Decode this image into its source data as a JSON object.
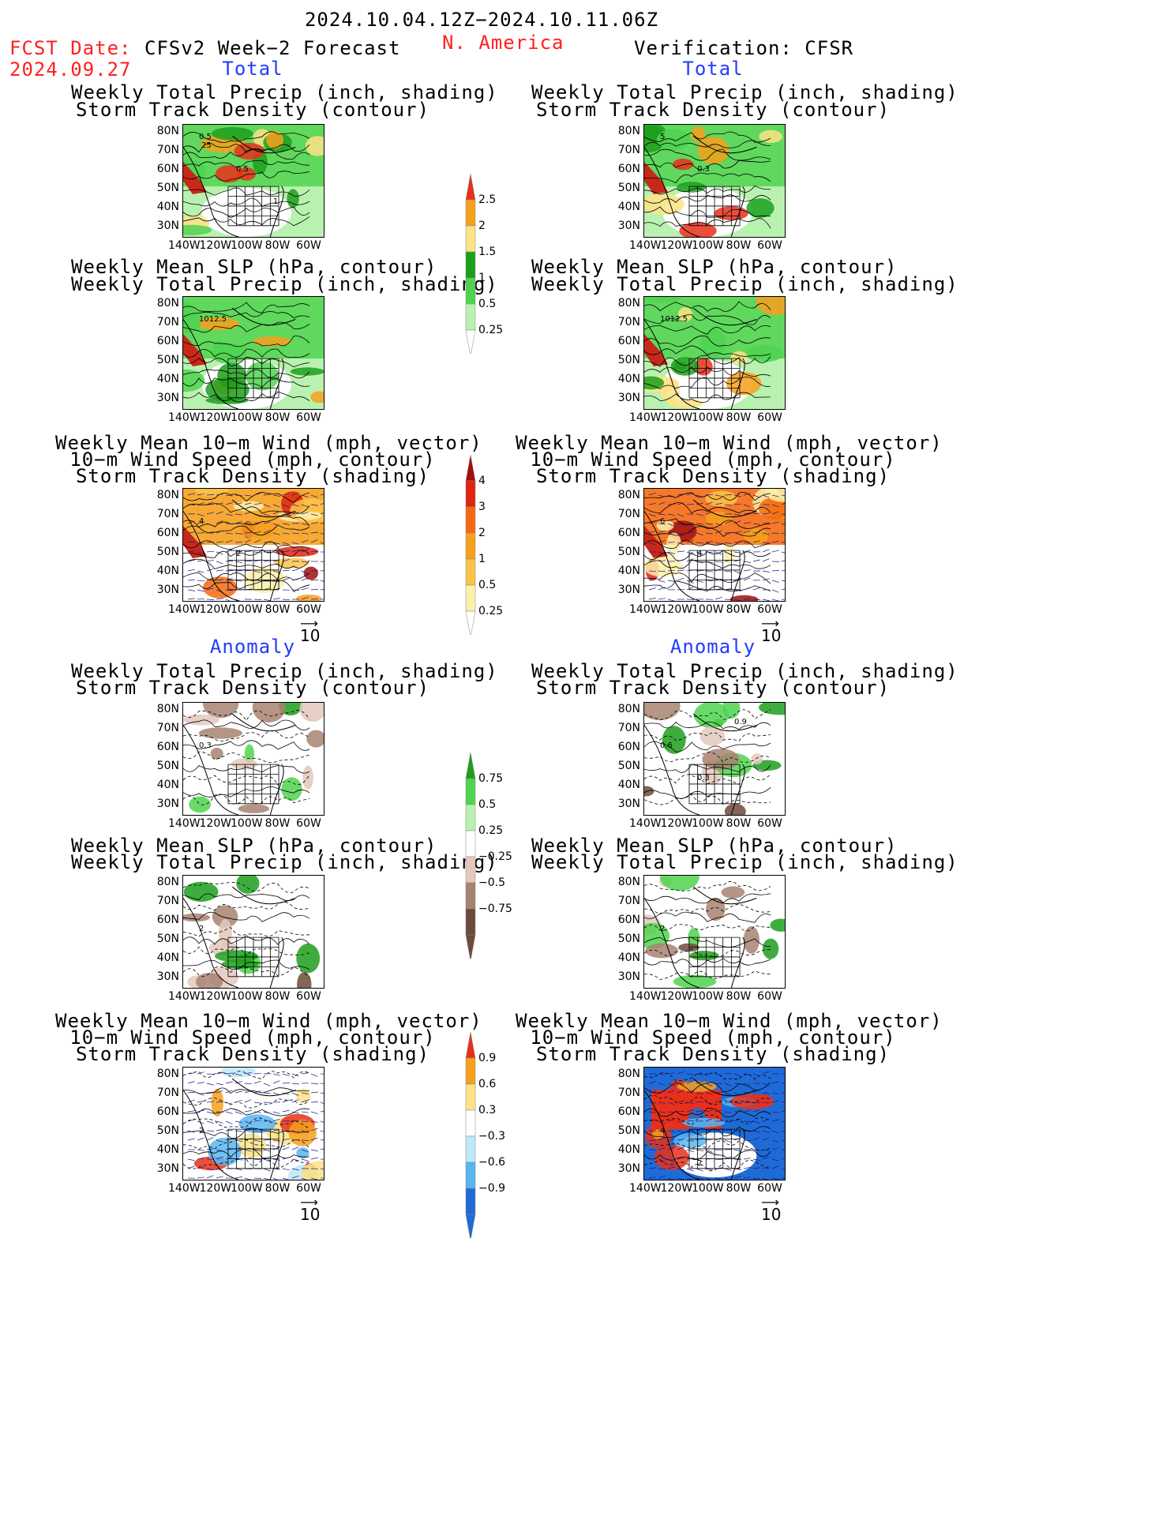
{
  "header": {
    "date_range": "2024.10.04.12Z−2024.10.11.06Z",
    "fcst_label": "FCST Date:",
    "fcst_date": "2024.09.27",
    "forecast_title": "CFSv2 Week−2 Forecast",
    "region": "N. America",
    "verification_title": "Verification: CFSR"
  },
  "sections": {
    "total": "Total",
    "anomaly": "Anomaly"
  },
  "titles": {
    "precip_storm": [
      "Weekly Total Precip (inch, shading)",
      "Storm Track Density (contour)"
    ],
    "slp_precip": [
      "Weekly Mean SLP (hPa, contour)",
      "Weekly Total Precip (inch, shading)"
    ],
    "wind_storm": [
      "Weekly Mean 10−m Wind (mph, vector)",
      "10−m Wind Speed (mph, contour)",
      "Storm Track Density (shading)"
    ]
  },
  "axes": {
    "lat_labels": [
      "80N",
      "70N",
      "60N",
      "50N",
      "40N",
      "30N"
    ],
    "lon_labels": [
      "140W",
      "120W",
      "100W",
      "80W",
      "60W"
    ]
  },
  "vector_ref": "10",
  "colorbars": {
    "precip_total": {
      "labels": [
        "2.5",
        "2",
        "1.5",
        "1",
        "0.5",
        "0.25"
      ],
      "colors": [
        "#e8301a",
        "#f7a01c",
        "#fde385",
        "#1c9f1c",
        "#4fd44f",
        "#b9f2b0"
      ]
    },
    "storm_total": {
      "labels": [
        "4",
        "3",
        "2",
        "1",
        "0.5",
        "0.25"
      ],
      "colors": [
        "#a30f0f",
        "#e0240f",
        "#f56a10",
        "#f7a01c",
        "#fbc448",
        "#fdf0a8"
      ]
    },
    "precip_anom": {
      "labels": [
        "0.75",
        "0.5",
        "0.25",
        "−0.25",
        "−0.5",
        "−0.75"
      ],
      "colors": [
        "#1c9f1c",
        "#4fd44f",
        "#b9f2b0",
        "#ffffff",
        "#e3c8bb",
        "#a78271",
        "#6e4a3c"
      ]
    },
    "storm_anom": {
      "labels": [
        "0.9",
        "0.6",
        "0.3",
        "−0.3",
        "−0.6",
        "−0.9"
      ],
      "colors": [
        "#e8301a",
        "#f7a01c",
        "#fde385",
        "#ffffff",
        "#bde9f7",
        "#59b6f0",
        "#1f6bd6"
      ]
    },
    "colors_meta": {
      "map_land": "#ffffff",
      "green_light": "#b9f2b0",
      "green_mid": "#4fd44f",
      "brown_light": "#e3c8bb",
      "brown_dark": "#6e4a3c"
    }
  },
  "panels": [
    {
      "id": "f-total-precip",
      "labels": [
        "0.5",
        "0.5",
        "1",
        "25"
      ]
    },
    {
      "id": "v-total-precip",
      "labels": [
        "5",
        "0.3"
      ]
    },
    {
      "id": "f-total-slp",
      "labels": [
        "1012.5"
      ]
    },
    {
      "id": "v-total-slp",
      "labels": [
        "1012.5"
      ]
    },
    {
      "id": "f-total-wind",
      "labels": [
        "4",
        "2"
      ]
    },
    {
      "id": "v-total-wind",
      "labels": [
        "6",
        "4"
      ]
    },
    {
      "id": "f-anom-precip",
      "labels": [
        "0.3"
      ]
    },
    {
      "id": "v-anom-precip",
      "labels": [
        "0.6",
        "0.3",
        "0.9"
      ]
    },
    {
      "id": "f-anom-slp",
      "labels": [
        "2"
      ]
    },
    {
      "id": "v-anom-slp",
      "labels": [
        "2"
      ]
    },
    {
      "id": "f-anom-wind",
      "labels": [
        "2"
      ]
    },
    {
      "id": "v-anom-wind",
      "labels": [
        "4",
        "2"
      ]
    }
  ]
}
